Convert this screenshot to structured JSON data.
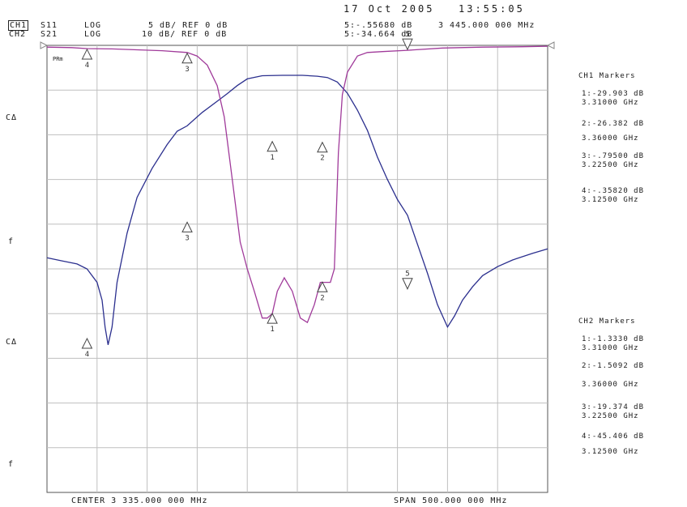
{
  "header": {
    "date": "17 Oct 2005",
    "time": "13:55:05",
    "ch1": {
      "label": "CH1",
      "param": "S11",
      "format": "LOG",
      "scale": "5 dB/ REF 0 dB"
    },
    "ch2": {
      "label": "CH2",
      "param": "S21",
      "format": "LOG",
      "scale": "10 dB/ REF 0 dB"
    },
    "active_marker_ch1": "5:-.55680 dB",
    "active_marker_freq": "3 445.000 000 MHz",
    "active_marker_ch2": "5:-34.664 dB"
  },
  "footer": {
    "center": "CENTER 3 335.000 000 MHz",
    "span": "SPAN 500.000 000 MHz"
  },
  "left_labels": {
    "ch1_cal": "CΔ",
    "ch1_f": "f",
    "ch2_cal": "CΔ",
    "ch2_f": "f",
    "pref": "PRm"
  },
  "marker_panel": {
    "ch1_title": "CH1 Markers",
    "ch1": [
      {
        "value": "1:-29.903 dB",
        "freq": "3.31000 GHz"
      },
      {
        "value": "2:-26.382 dB",
        "freq": "3.36000 GHz"
      },
      {
        "value": "3:-.79500 dB",
        "freq": "3.22500 GHz"
      },
      {
        "value": "4:-.35820 dB",
        "freq": "3.12500 GHz"
      }
    ],
    "ch2_title": "CH2 Markers",
    "ch2": [
      {
        "value": "1:-1.3330 dB",
        "freq": "3.31000 GHz"
      },
      {
        "value": "2:-1.5092 dB",
        "freq": "3.36000 GHz"
      },
      {
        "value": "3:-19.374 dB",
        "freq": "3.22500 GHz"
      },
      {
        "value": "4:-45.406 dB",
        "freq": "3.12500 GHz"
      }
    ]
  },
  "colors": {
    "s11": "#a03a9a",
    "s21": "#2b2f8e",
    "grid": "#bfbfbf"
  },
  "chart_data": {
    "type": "line",
    "xlabel": "",
    "ylabel": "",
    "x_unit": "MHz",
    "xlim": [
      3085,
      3585
    ],
    "grid": true,
    "series": [
      {
        "name": "S11",
        "ylim": [
          -50,
          0
        ],
        "x": [
          3085,
          3110,
          3125,
          3150,
          3175,
          3200,
          3225,
          3235,
          3245,
          3255,
          3262,
          3270,
          3278,
          3285,
          3292,
          3300,
          3305,
          3310,
          3315,
          3322,
          3330,
          3338,
          3345,
          3352,
          3358,
          3362,
          3368,
          3372,
          3376,
          3380,
          3385,
          3395,
          3405,
          3420,
          3445,
          3480,
          3520,
          3560,
          3585
        ],
        "y": [
          -0.2,
          -0.25,
          -0.36,
          -0.4,
          -0.5,
          -0.6,
          -0.8,
          -1.2,
          -2.2,
          -4.5,
          -8,
          -15,
          -22,
          -25,
          -27.5,
          -30.5,
          -30.5,
          -30,
          -27.5,
          -26,
          -27.5,
          -30.5,
          -31,
          -29,
          -26.5,
          -26.5,
          -26.5,
          -25,
          -12,
          -5.5,
          -3,
          -1.2,
          -0.8,
          -0.7,
          -0.55,
          -0.3,
          -0.2,
          -0.15,
          -0.1
        ]
      },
      {
        "name": "S21",
        "ylim": [
          -80,
          20
        ],
        "x": [
          3085,
          3100,
          3115,
          3125,
          3135,
          3140,
          3143,
          3146,
          3150,
          3155,
          3165,
          3175,
          3190,
          3205,
          3215,
          3225,
          3240,
          3255,
          3265,
          3275,
          3285,
          3300,
          3320,
          3340,
          3355,
          3365,
          3375,
          3385,
          3395,
          3405,
          3415,
          3425,
          3435,
          3445,
          3455,
          3465,
          3475,
          3485,
          3492,
          3500,
          3510,
          3520,
          3535,
          3550,
          3570,
          3585
        ],
        "y": [
          -27.5,
          -28.2,
          -28.9,
          -30,
          -33,
          -37,
          -43,
          -47,
          -43,
          -33,
          -22,
          -14,
          -7.5,
          -2.2,
          0.8,
          2,
          5,
          7.5,
          9.2,
          11,
          12.5,
          13.2,
          13.3,
          13.3,
          13.1,
          12.8,
          11.8,
          9.3,
          5.5,
          1,
          -5,
          -10,
          -14.5,
          -18,
          -24.5,
          -31,
          -38,
          -43,
          -40.5,
          -37,
          -34,
          -31.5,
          -29.5,
          -28,
          -26.5,
          -25.5
        ]
      }
    ],
    "markers": {
      "S11": [
        {
          "id": "1",
          "x": 3310,
          "y": -29.903
        },
        {
          "id": "2",
          "x": 3360,
          "y": -26.382
        },
        {
          "id": "3",
          "x": 3225,
          "y": -0.795
        },
        {
          "id": "4",
          "x": 3125,
          "y": -0.3582
        },
        {
          "id": "5",
          "x": 3445,
          "y": -0.5568
        }
      ],
      "S21": [
        {
          "id": "1",
          "x": 3310,
          "y": -1.333
        },
        {
          "id": "2",
          "x": 3360,
          "y": -1.5092
        },
        {
          "id": "3",
          "x": 3225,
          "y": -19.374
        },
        {
          "id": "4",
          "x": 3125,
          "y": -45.406
        },
        {
          "id": "5",
          "x": 3445,
          "y": -34.664
        }
      ]
    }
  }
}
